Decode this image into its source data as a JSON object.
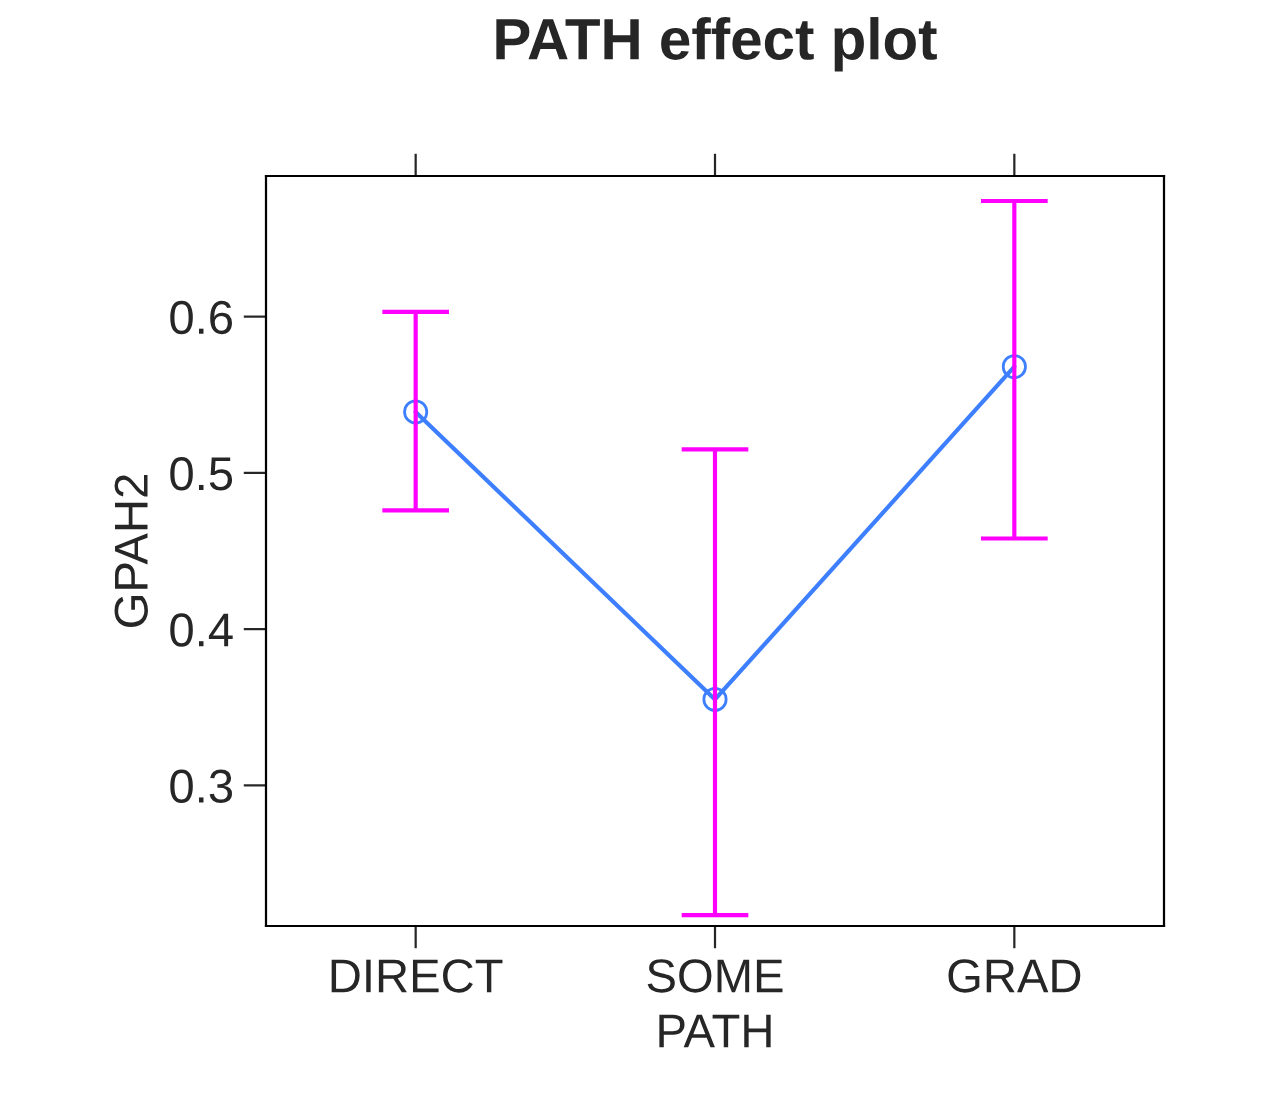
{
  "chart_data": {
    "type": "line",
    "title": "PATH effect plot",
    "xlabel": "PATH",
    "ylabel": "GPAH2",
    "categories": [
      "DIRECT",
      "SOME",
      "GRAD"
    ],
    "series": [
      {
        "color": "#3d7fff",
        "values": [
          0.539,
          0.355,
          0.568
        ],
        "errors": [
          [
            0.476,
            0.603
          ],
          [
            0.217,
            0.515
          ],
          [
            0.458,
            0.674
          ]
        ]
      }
    ],
    "marker": "circle",
    "ylim": [
      0.21,
      0.69
    ],
    "yticks": [
      0.3,
      0.4,
      0.5,
      0.6
    ],
    "grid": false,
    "legend": false
  }
}
